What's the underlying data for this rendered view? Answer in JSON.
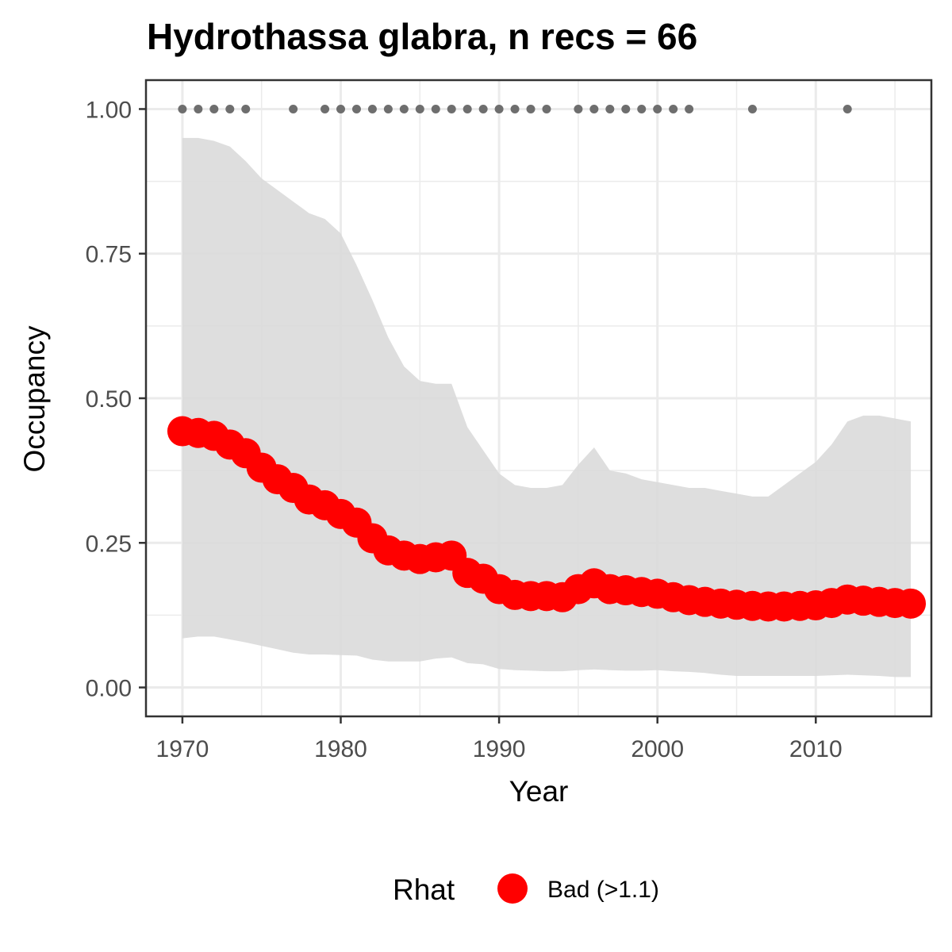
{
  "chart_data": {
    "type": "line",
    "title": "Hydrothassa glabra, n recs = 66",
    "xlabel": "Year",
    "ylabel": "Occupancy",
    "xlim": [
      1967.7,
      2017.3
    ],
    "ylim": [
      -0.05,
      1.05
    ],
    "xticks": [
      1970,
      1980,
      1990,
      2000,
      2010
    ],
    "xtick_labels": [
      "1970",
      "1980",
      "1990",
      "2000",
      "2010"
    ],
    "yticks": [
      0,
      0.25,
      0.5,
      0.75,
      1.0
    ],
    "ytick_labels": [
      "0.00",
      "0.25",
      "0.50",
      "0.75",
      "1.00"
    ],
    "grid": true,
    "legend": {
      "title": "Rhat",
      "position": "bottom",
      "entries": [
        {
          "label": "Bad (>1.1)",
          "color": "#ff0000"
        }
      ]
    },
    "colors": {
      "series": "#ff0000",
      "ribbon": "#d9d9d9",
      "records": "#6e6e6e",
      "grid": "#ebebeb",
      "border": "#333333"
    },
    "series": [
      {
        "x": [
          1970,
          1971,
          1972,
          1973,
          1974,
          1975,
          1976,
          1977,
          1978,
          1979,
          1980,
          1981,
          1982,
          1983,
          1984,
          1985,
          1986,
          1987,
          1988,
          1989,
          1990,
          1991,
          1992,
          1993,
          1994,
          1995,
          1996,
          1997,
          1998,
          1999,
          2000,
          2001,
          2002,
          2003,
          2004,
          2005,
          2006,
          2007,
          2008,
          2009,
          2010,
          2011,
          2012,
          2013,
          2014,
          2015,
          2016
        ],
        "values": [
          0.443,
          0.44,
          0.435,
          0.42,
          0.405,
          0.38,
          0.36,
          0.345,
          0.325,
          0.315,
          0.3,
          0.285,
          0.258,
          0.237,
          0.228,
          0.222,
          0.225,
          0.228,
          0.198,
          0.188,
          0.17,
          0.16,
          0.158,
          0.158,
          0.156,
          0.17,
          0.18,
          0.17,
          0.168,
          0.165,
          0.162,
          0.156,
          0.151,
          0.148,
          0.145,
          0.143,
          0.141,
          0.14,
          0.14,
          0.141,
          0.142,
          0.146,
          0.152,
          0.15,
          0.148,
          0.146,
          0.145
        ],
        "lower": [
          0.085,
          0.088,
          0.088,
          0.083,
          0.078,
          0.072,
          0.066,
          0.06,
          0.057,
          0.057,
          0.056,
          0.055,
          0.048,
          0.045,
          0.045,
          0.045,
          0.05,
          0.052,
          0.042,
          0.04,
          0.032,
          0.03,
          0.029,
          0.028,
          0.028,
          0.03,
          0.031,
          0.03,
          0.029,
          0.029,
          0.03,
          0.028,
          0.027,
          0.025,
          0.022,
          0.02,
          0.02,
          0.02,
          0.02,
          0.02,
          0.02,
          0.021,
          0.022,
          0.021,
          0.02,
          0.018,
          0.018
        ],
        "upper": [
          0.95,
          0.95,
          0.945,
          0.935,
          0.91,
          0.88,
          0.86,
          0.84,
          0.82,
          0.81,
          0.785,
          0.73,
          0.67,
          0.605,
          0.555,
          0.53,
          0.525,
          0.525,
          0.45,
          0.41,
          0.37,
          0.35,
          0.345,
          0.345,
          0.35,
          0.385,
          0.415,
          0.375,
          0.37,
          0.36,
          0.355,
          0.35,
          0.345,
          0.345,
          0.34,
          0.335,
          0.33,
          0.33,
          0.35,
          0.37,
          0.39,
          0.42,
          0.46,
          0.47,
          0.47,
          0.465,
          0.46
        ]
      }
    ],
    "records": {
      "y": 1.0,
      "x": [
        1970,
        1971,
        1972,
        1973,
        1974,
        1977,
        1979,
        1980,
        1981,
        1982,
        1983,
        1984,
        1985,
        1986,
        1987,
        1988,
        1989,
        1990,
        1991,
        1992,
        1993,
        1995,
        1996,
        1997,
        1998,
        1999,
        2000,
        2001,
        2002,
        2006,
        2012
      ]
    }
  }
}
